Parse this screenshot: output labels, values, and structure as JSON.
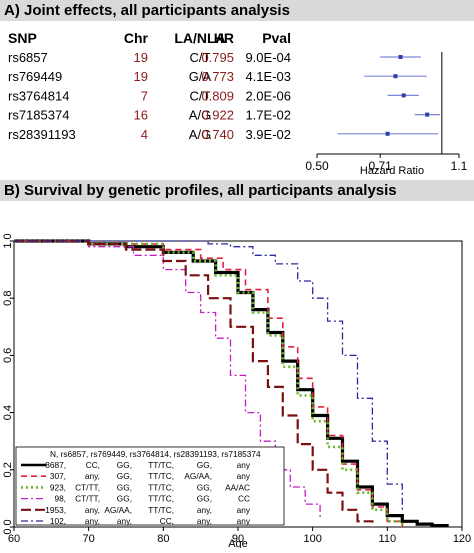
{
  "panel_a": {
    "title": "A) Joint effects, all participants analysis",
    "headers": {
      "snp": "SNP",
      "chr": "Chr",
      "la": "LA/NLA",
      "hr": "HR",
      "pval": "Pval"
    },
    "colors": {
      "chr": "#8b1a1a",
      "hr": "#8b1a1a",
      "point": "#2e3ea8",
      "ci": "#7c87d6"
    }
  },
  "panel_b": {
    "title": "B) Survival by genetic profiles, all participants analysis",
    "legend_header": "N, rs6857, rs769449, rs3764814, rs28391193, rs7185374"
  },
  "chart_data": [
    {
      "type": "forest",
      "rows": [
        {
          "snp": "rs6857",
          "chr": "19",
          "la_nla": "C/T",
          "hr": "0.795",
          "pval": "9.0E-04",
          "hr_value": 0.795,
          "ci": [
            0.71,
            0.89
          ]
        },
        {
          "snp": "rs769449",
          "chr": "19",
          "la_nla": "G/A",
          "hr": "0.773",
          "pval": "4.1E-03",
          "hr_value": 0.773,
          "ci": [
            0.65,
            0.92
          ]
        },
        {
          "snp": "rs3764814",
          "chr": "7",
          "la_nla": "C/T",
          "hr": "0.809",
          "pval": "2.0E-06",
          "hr_value": 0.809,
          "ci": [
            0.74,
            0.88
          ]
        },
        {
          "snp": "rs7185374",
          "chr": "16",
          "la_nla": "A/G",
          "hr": "0.922",
          "pval": "1.7E-02",
          "hr_value": 0.922,
          "ci": [
            0.86,
            0.99
          ]
        },
        {
          "snp": "rs28391193",
          "chr": "4",
          "la_nla": "A/G",
          "hr": "0.740",
          "pval": "3.9E-02",
          "hr_value": 0.74,
          "ci": [
            0.56,
            0.98
          ]
        }
      ],
      "x_ticks": [
        "0.50",
        "0.71",
        "1.1"
      ],
      "x_tick_values": [
        0.5,
        0.71,
        1.1
      ],
      "xlim": [
        0.5,
        1.1
      ],
      "x_scale": "log",
      "xlabel": "Hazard Ratio"
    },
    {
      "type": "line",
      "xlabel": "Age",
      "xlim": [
        60,
        120
      ],
      "ylim": [
        0,
        1
      ],
      "x_ticks": [
        "60",
        "70",
        "80",
        "90",
        "100",
        "110",
        "120"
      ],
      "x_tick_values": [
        60,
        70,
        80,
        90,
        100,
        110,
        120
      ],
      "y_ticks": [
        "0.0",
        "0.2",
        "0.4",
        "0.6",
        "0.8",
        "1.0"
      ],
      "y_tick_values": [
        0,
        0.2,
        0.4,
        0.6,
        0.8,
        1.0
      ],
      "legend_position": "bottom-left",
      "series": [
        {
          "n": "8687,",
          "g1": "CC,",
          "g2": "GG,",
          "g3": "TT/TC,",
          "g4": "GG,",
          "g5": "any",
          "color": "#000000",
          "dash": "",
          "width": 3.2,
          "x": [
            60,
            70,
            75,
            80,
            84,
            87,
            90,
            92,
            94,
            96,
            98,
            100,
            102,
            104,
            106,
            108,
            110,
            112,
            114,
            116,
            118
          ],
          "y": [
            1.0,
            0.99,
            0.98,
            0.96,
            0.93,
            0.89,
            0.82,
            0.76,
            0.68,
            0.58,
            0.48,
            0.39,
            0.31,
            0.23,
            0.14,
            0.08,
            0.04,
            0.02,
            0.01,
            0.005,
            0.0
          ]
        },
        {
          "n": "307,",
          "g1": "any,",
          "g2": "GG,",
          "g3": "TT/TC,",
          "g4": "AG/AA,",
          "g5": "any",
          "color": "#e6203b",
          "dash": "6,4",
          "width": 1.6,
          "x": [
            60,
            70,
            80,
            85,
            88,
            91,
            94,
            96,
            98,
            100,
            102,
            104,
            106,
            108,
            110,
            112
          ],
          "y": [
            1.0,
            0.99,
            0.97,
            0.94,
            0.9,
            0.83,
            0.73,
            0.63,
            0.52,
            0.42,
            0.32,
            0.22,
            0.13,
            0.07,
            0.02,
            0.0
          ]
        },
        {
          "n": "923,",
          "g1": "CT/TT,",
          "g2": "GG,",
          "g3": "TT/TC,",
          "g4": "GG,",
          "g5": "AA/AC",
          "color": "#6ab82c",
          "dash": "2,3",
          "width": 2.6,
          "x": [
            60,
            70,
            80,
            84,
            87,
            90,
            92,
            94,
            96,
            98,
            100,
            102,
            104,
            106,
            108,
            110,
            112
          ],
          "y": [
            1.0,
            0.99,
            0.96,
            0.93,
            0.88,
            0.82,
            0.75,
            0.67,
            0.56,
            0.46,
            0.37,
            0.28,
            0.2,
            0.12,
            0.06,
            0.02,
            0.0
          ]
        },
        {
          "n": "98,",
          "g1": "CT/TT,",
          "g2": "GG,",
          "g3": "TT/TC,",
          "g4": "GG,",
          "g5": "CC",
          "color": "#c61ec6",
          "dash": "7,3,2,3",
          "width": 1.3,
          "x": [
            60,
            70,
            76,
            80,
            83,
            85,
            87,
            89,
            91,
            93,
            95,
            97,
            99,
            101
          ],
          "y": [
            1.0,
            0.98,
            0.95,
            0.9,
            0.82,
            0.75,
            0.66,
            0.53,
            0.4,
            0.3,
            0.2,
            0.14,
            0.08,
            0.03
          ]
        },
        {
          "n": "1953,",
          "g1": "any,",
          "g2": "AG/AA,",
          "g3": "TT/TC,",
          "g4": "any,",
          "g5": "any",
          "color": "#7a1010",
          "dash": "10,4",
          "width": 2.2,
          "x": [
            60,
            70,
            75,
            80,
            83,
            86,
            89,
            92,
            94,
            96,
            98,
            100,
            102,
            104,
            106,
            108
          ],
          "y": [
            1.0,
            0.99,
            0.97,
            0.93,
            0.88,
            0.8,
            0.7,
            0.58,
            0.49,
            0.39,
            0.29,
            0.2,
            0.12,
            0.06,
            0.02,
            0.0
          ]
        },
        {
          "n": "102,",
          "g1": "any,",
          "g2": "any,",
          "g3": "CC,",
          "g4": "any,",
          "g5": "any",
          "color": "#2a2aa0",
          "dash": "7,3,2,3",
          "width": 1.3,
          "x": [
            60,
            80,
            86,
            89,
            92,
            95,
            98,
            100,
            102,
            104,
            106,
            108,
            110,
            112
          ],
          "y": [
            1.0,
            1.0,
            0.99,
            0.98,
            0.95,
            0.92,
            0.86,
            0.8,
            0.72,
            0.6,
            0.45,
            0.3,
            0.15,
            0.05
          ]
        }
      ]
    }
  ]
}
